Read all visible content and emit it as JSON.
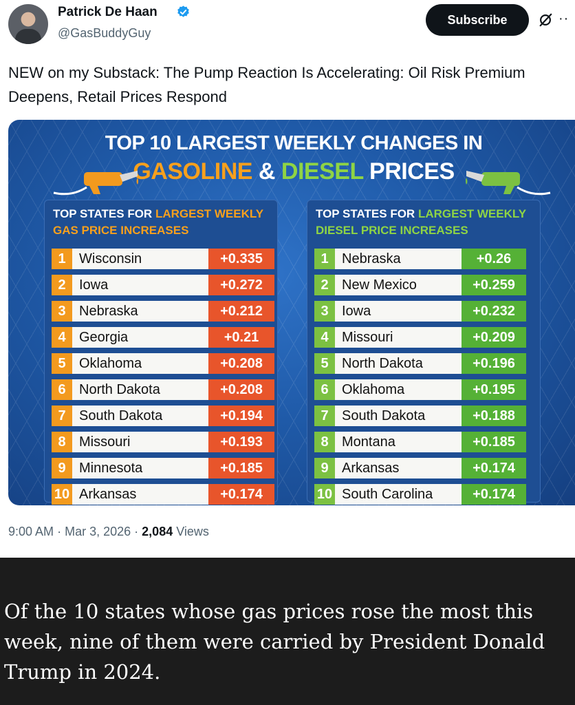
{
  "tweet": {
    "author_name": "Patrick De Haan",
    "handle": "@GasBuddyGuy",
    "subscribe_label": "Subscribe",
    "more_label": "··",
    "text": "NEW on my Substack: The Pump Reaction Is Accelerating: Oil Risk Premium Deepens, Retail Prices Respond",
    "time": "9:00 AM",
    "separator": "·",
    "date": "Mar 3, 2026",
    "views_count": "2,084",
    "views_label": "Views"
  },
  "infographic": {
    "headline_line1": "TOP 10 LARGEST WEEKLY CHANGES IN",
    "headline_gasoline": "GASOLINE",
    "headline_amp": "&",
    "headline_diesel": "DIESEL",
    "headline_prices": "PRICES",
    "gas_panel": {
      "title_prefix": "TOP STATES FOR",
      "title_highlight": "LARGEST WEEKLY",
      "title_suffix": "GAS PRICE INCREASES",
      "rows": [
        {
          "rank": "1",
          "state": "Wisconsin",
          "change": "+0.335"
        },
        {
          "rank": "2",
          "state": "Iowa",
          "change": "+0.272"
        },
        {
          "rank": "3",
          "state": "Nebraska",
          "change": "+0.212"
        },
        {
          "rank": "4",
          "state": "Georgia",
          "change": "+0.21"
        },
        {
          "rank": "5",
          "state": "Oklahoma",
          "change": "+0.208"
        },
        {
          "rank": "6",
          "state": "North Dakota",
          "change": "+0.208"
        },
        {
          "rank": "7",
          "state": "South Dakota",
          "change": "+0.194"
        },
        {
          "rank": "8",
          "state": "Missouri",
          "change": "+0.193"
        },
        {
          "rank": "9",
          "state": "Minnesota",
          "change": "+0.185"
        },
        {
          "rank": "10",
          "state": "Arkansas",
          "change": "+0.174"
        }
      ]
    },
    "diesel_panel": {
      "title_prefix": "TOP STATES FOR",
      "title_highlight": "LARGEST WEEKLY",
      "title_suffix": "DIESEL PRICE INCREASES",
      "rows": [
        {
          "rank": "1",
          "state": "Nebraska",
          "change": "+0.26"
        },
        {
          "rank": "2",
          "state": "New Mexico",
          "change": "+0.259"
        },
        {
          "rank": "3",
          "state": "Iowa",
          "change": "+0.232"
        },
        {
          "rank": "4",
          "state": "Missouri",
          "change": "+0.209"
        },
        {
          "rank": "5",
          "state": "North Dakota",
          "change": "+0.196"
        },
        {
          "rank": "6",
          "state": "Oklahoma",
          "change": "+0.195"
        },
        {
          "rank": "7",
          "state": "South Dakota",
          "change": "+0.188"
        },
        {
          "rank": "8",
          "state": "Montana",
          "change": "+0.185"
        },
        {
          "rank": "9",
          "state": "Arkansas",
          "change": "+0.174"
        },
        {
          "rank": "10",
          "state": "South Carolina",
          "change": "+0.174"
        }
      ]
    }
  },
  "caption": "Of the 10 states whose gas prices rose the most this week, nine of them were carried by President Donald Trump in 2024.",
  "colors": {
    "gas_accent": "#f39a1e",
    "gas_value": "#e8552b",
    "diesel_accent": "#7cc142",
    "diesel_value": "#55b136",
    "infographic_bg": "#1f5aa8",
    "verified": "#1d9bf0"
  },
  "icons": {
    "verified": "verified-badge-icon",
    "grok": "grok-slash-icon",
    "more": "more-dots-icon",
    "gas_nozzle": "gas-nozzle-icon",
    "diesel_nozzle": "diesel-nozzle-icon"
  }
}
